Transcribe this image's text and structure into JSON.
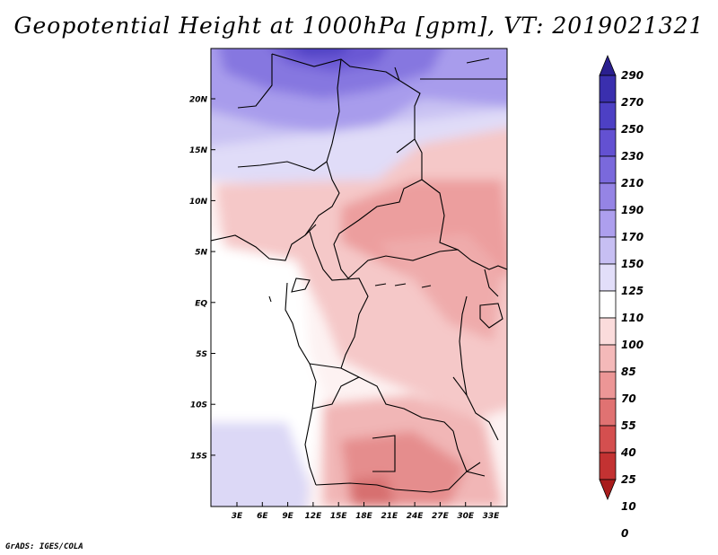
{
  "title": "Geopotential Height at 1000hPa [gpm], VT: 2019021321",
  "footer": "GrADS: IGES/COLA",
  "map": {
    "lat_labels": [
      "20N",
      "15N",
      "10N",
      "5N",
      "EQ",
      "5S",
      "10S",
      "15S"
    ],
    "lon_labels": [
      "3E",
      "6E",
      "9E",
      "12E",
      "15E",
      "18E",
      "21E",
      "24E",
      "27E",
      "30E",
      "33E"
    ]
  },
  "colorbar": {
    "labels": [
      "290",
      "270",
      "250",
      "230",
      "210",
      "190",
      "170",
      "150",
      "125",
      "110",
      "100",
      "85",
      "70",
      "55",
      "40",
      "25",
      "10",
      "0"
    ],
    "colors": [
      "#2a1f8f",
      "#3a2fae",
      "#4d40c4",
      "#6351d2",
      "#7a69dc",
      "#9584e5",
      "#ad9fee",
      "#c7bff3",
      "#e2def9",
      "#ffffff",
      "#fbdcdc",
      "#f4b9b9",
      "#ec9696",
      "#e07272",
      "#d44f4f",
      "#c33232",
      "#a81c1c"
    ]
  }
}
